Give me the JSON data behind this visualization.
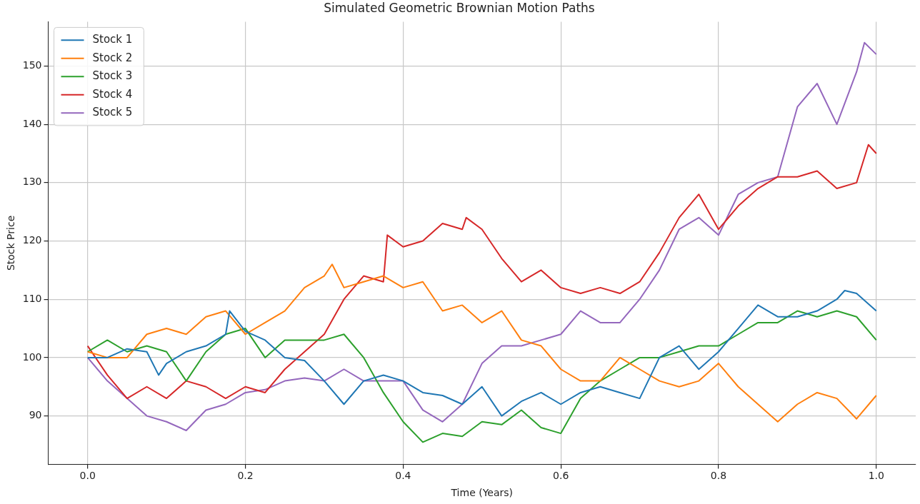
{
  "chart_data": {
    "type": "line",
    "title": "Simulated Geometric Brownian Motion Paths",
    "xlabel": "Time (Years)",
    "ylabel": "Stock Price",
    "xlim": [
      -0.05,
      1.05
    ],
    "ylim": [
      81.7,
      157.6
    ],
    "xticks": [
      {
        "value": 0,
        "label": "0.0"
      },
      {
        "value": 0.2,
        "label": "0.2"
      },
      {
        "value": 0.4,
        "label": "0.4"
      },
      {
        "value": 0.6,
        "label": "0.6"
      },
      {
        "value": 0.8,
        "label": "0.8"
      },
      {
        "value": 1,
        "label": "1.0"
      }
    ],
    "yticks": [
      90,
      100,
      110,
      120,
      130,
      140,
      150
    ],
    "grid": true,
    "legend": "top left",
    "marker": "none",
    "line_style": "solid",
    "series": [
      {
        "name": "Stock 1",
        "color": "#1f77b4",
        "x": [
          0,
          0.025,
          0.05,
          0.075,
          0.09,
          0.1,
          0.125,
          0.15,
          0.175,
          0.18,
          0.2,
          0.225,
          0.25,
          0.275,
          0.3,
          0.325,
          0.35,
          0.375,
          0.4,
          0.425,
          0.45,
          0.475,
          0.5,
          0.525,
          0.55,
          0.575,
          0.6,
          0.625,
          0.65,
          0.675,
          0.7,
          0.725,
          0.75,
          0.775,
          0.8,
          0.825,
          0.85,
          0.875,
          0.9,
          0.925,
          0.95,
          0.96,
          0.975,
          1.0
        ],
        "values": [
          100,
          100,
          101.5,
          101,
          97,
          99,
          101,
          102,
          104,
          108,
          104.5,
          103,
          100,
          99.5,
          96,
          92,
          96,
          97,
          96,
          94,
          93.5,
          92,
          95,
          90,
          92.5,
          94,
          92,
          94,
          95,
          94,
          93,
          100,
          102,
          98,
          101,
          105,
          109,
          107,
          107,
          108,
          110,
          111.5,
          111,
          108
        ]
      },
      {
        "name": "Stock 2",
        "color": "#ff7f0e",
        "x": [
          0,
          0.025,
          0.05,
          0.075,
          0.1,
          0.125,
          0.15,
          0.175,
          0.2,
          0.225,
          0.25,
          0.275,
          0.3,
          0.31,
          0.325,
          0.35,
          0.375,
          0.4,
          0.425,
          0.45,
          0.475,
          0.5,
          0.525,
          0.55,
          0.575,
          0.6,
          0.625,
          0.65,
          0.675,
          0.7,
          0.725,
          0.75,
          0.775,
          0.8,
          0.825,
          0.85,
          0.875,
          0.9,
          0.925,
          0.95,
          0.975,
          1.0
        ],
        "values": [
          101,
          100,
          100,
          104,
          105,
          104,
          107,
          108,
          104,
          106,
          108,
          112,
          114,
          116,
          112,
          113,
          114,
          112,
          113,
          108,
          109,
          106,
          108,
          103,
          102,
          98,
          96,
          96,
          100,
          98,
          96,
          95,
          96,
          99,
          95,
          92,
          89,
          92,
          94,
          93,
          89.5,
          93.5
        ]
      },
      {
        "name": "Stock 3",
        "color": "#2ca02c",
        "x": [
          0,
          0.025,
          0.05,
          0.075,
          0.1,
          0.125,
          0.15,
          0.175,
          0.2,
          0.225,
          0.25,
          0.275,
          0.3,
          0.325,
          0.35,
          0.375,
          0.4,
          0.425,
          0.45,
          0.475,
          0.5,
          0.525,
          0.55,
          0.575,
          0.6,
          0.625,
          0.65,
          0.675,
          0.7,
          0.725,
          0.75,
          0.775,
          0.8,
          0.825,
          0.85,
          0.875,
          0.9,
          0.925,
          0.95,
          0.975,
          1.0
        ],
        "values": [
          101,
          103,
          101,
          102,
          101,
          96,
          101,
          104,
          105,
          100,
          103,
          103,
          103,
          104,
          100,
          94,
          89,
          85.5,
          87,
          86.5,
          89,
          88.5,
          91,
          88,
          87,
          93,
          96,
          98,
          100,
          100,
          101,
          102,
          102,
          104,
          106,
          106,
          108,
          107,
          108,
          107,
          103
        ]
      },
      {
        "name": "Stock 4",
        "color": "#d62728",
        "x": [
          0,
          0.025,
          0.05,
          0.075,
          0.1,
          0.125,
          0.15,
          0.175,
          0.2,
          0.225,
          0.25,
          0.275,
          0.3,
          0.325,
          0.35,
          0.375,
          0.38,
          0.4,
          0.425,
          0.45,
          0.475,
          0.48,
          0.5,
          0.525,
          0.55,
          0.575,
          0.6,
          0.625,
          0.65,
          0.675,
          0.7,
          0.725,
          0.75,
          0.775,
          0.8,
          0.825,
          0.85,
          0.875,
          0.9,
          0.925,
          0.95,
          0.975,
          0.99,
          1.0
        ],
        "values": [
          102,
          97,
          93,
          95,
          93,
          96,
          95,
          93,
          95,
          94,
          98,
          101,
          104,
          110,
          114,
          113,
          121,
          119,
          120,
          123,
          122,
          124,
          122,
          117,
          113,
          115,
          112,
          111,
          112,
          111,
          113,
          118,
          124,
          128,
          122,
          126,
          129,
          131,
          131,
          132,
          129,
          130,
          136.5,
          135
        ]
      },
      {
        "name": "Stock 5",
        "color": "#9467bd",
        "x": [
          0,
          0.025,
          0.05,
          0.075,
          0.1,
          0.125,
          0.15,
          0.175,
          0.2,
          0.225,
          0.25,
          0.275,
          0.3,
          0.325,
          0.35,
          0.375,
          0.4,
          0.425,
          0.45,
          0.475,
          0.5,
          0.525,
          0.55,
          0.575,
          0.6,
          0.625,
          0.65,
          0.675,
          0.7,
          0.725,
          0.75,
          0.775,
          0.8,
          0.825,
          0.85,
          0.875,
          0.9,
          0.925,
          0.95,
          0.975,
          0.985,
          1.0
        ],
        "values": [
          100,
          96,
          93,
          90,
          89,
          87.5,
          91,
          92,
          94,
          94.5,
          96,
          96.5,
          96,
          98,
          96,
          96,
          96,
          91,
          89,
          92,
          99,
          102,
          102,
          103,
          104,
          108,
          106,
          106,
          110,
          115,
          122,
          124,
          121,
          128,
          130,
          131,
          143,
          147,
          140,
          149,
          154,
          152
        ]
      }
    ]
  }
}
